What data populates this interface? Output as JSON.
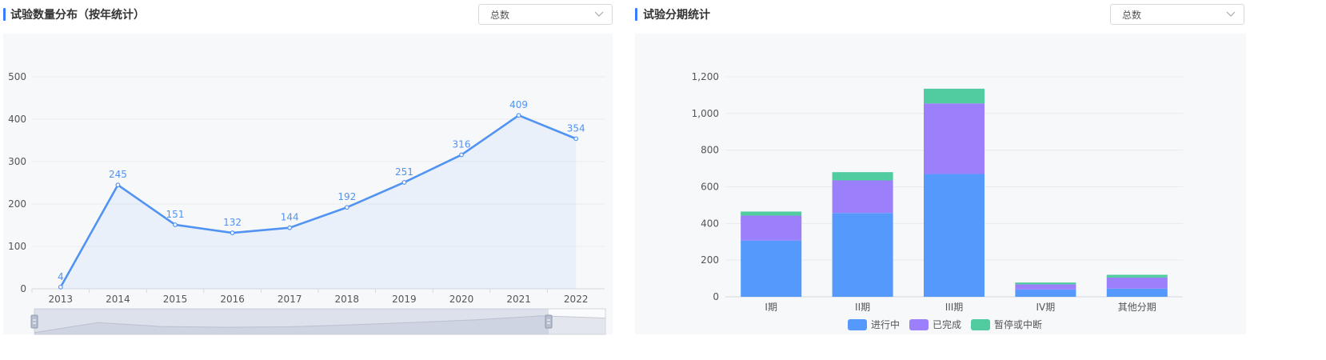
{
  "left_panel": {
    "title": "试验数量分布（按年统计）",
    "select": {
      "value": "总数"
    }
  },
  "right_panel": {
    "title": "试验分期统计",
    "select": {
      "value": "总数"
    }
  },
  "colors": {
    "accent": "#3b7cff",
    "line": "#5193f2",
    "ongoing": "#5599fc",
    "completed": "#9b7ffb",
    "suspended": "#51cba0"
  },
  "chart_data": [
    {
      "type": "line",
      "title": "",
      "xlabel": "",
      "ylabel": "",
      "x": [
        "2013",
        "2014",
        "2015",
        "2016",
        "2017",
        "2018",
        "2019",
        "2020",
        "2021",
        "2022"
      ],
      "values": [
        4,
        245,
        151,
        132,
        144,
        192,
        251,
        316,
        409,
        354
      ],
      "yticks": [
        "0",
        "100",
        "200",
        "300",
        "400",
        "500"
      ],
      "ylim": [
        0,
        500
      ],
      "grid": true,
      "area_fill": true,
      "data_labels": true,
      "data_zoom": true
    },
    {
      "type": "bar",
      "stacked": true,
      "title": "",
      "xlabel": "",
      "ylabel": "",
      "categories": [
        "I期",
        "II期",
        "III期",
        "IV期",
        "其他分期"
      ],
      "series": [
        {
          "name": "进行中",
          "values": [
            307,
            457,
            670,
            40,
            45
          ]
        },
        {
          "name": "已完成",
          "values": [
            136,
            178,
            385,
            28,
            60
          ]
        },
        {
          "name": "暂停或中断",
          "values": [
            22,
            45,
            80,
            10,
            15
          ]
        }
      ],
      "yticks": [
        "0",
        "200",
        "400",
        "600",
        "800",
        "1,000",
        "1,200"
      ],
      "ylim": [
        0,
        1200
      ],
      "grid": true,
      "legend": "bottom"
    }
  ]
}
